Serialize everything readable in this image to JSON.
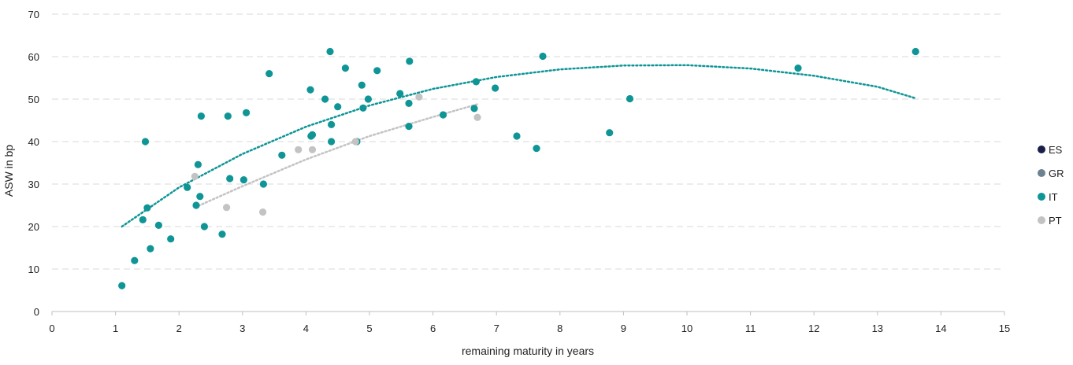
{
  "chart_data": {
    "type": "scatter",
    "title": "",
    "xlabel": "remaining maturity in years",
    "ylabel": "ASW in bp",
    "xlim": [
      0,
      15
    ],
    "ylim": [
      0,
      70
    ],
    "x_ticks": [
      0,
      1,
      2,
      3,
      4,
      5,
      6,
      7,
      8,
      9,
      10,
      11,
      12,
      13,
      14,
      15
    ],
    "y_ticks": [
      0,
      10,
      20,
      30,
      40,
      50,
      60,
      70
    ],
    "grid": "horizontal dashed",
    "legend_position": "right",
    "series": [
      {
        "name": "ES",
        "color": "#1a1f4a",
        "points": []
      },
      {
        "name": "GR",
        "color": "#6c8290",
        "points": []
      },
      {
        "name": "IT",
        "color": "#0f9596",
        "points": [
          [
            1.1,
            6.1
          ],
          [
            1.3,
            12
          ],
          [
            1.43,
            21.6
          ],
          [
            1.47,
            40
          ],
          [
            1.5,
            24.4
          ],
          [
            1.55,
            14.8
          ],
          [
            1.68,
            20.3
          ],
          [
            1.87,
            17.1
          ],
          [
            2.13,
            29.2
          ],
          [
            2.27,
            25
          ],
          [
            2.3,
            34.6
          ],
          [
            2.33,
            27.1
          ],
          [
            2.35,
            46
          ],
          [
            2.4,
            20
          ],
          [
            2.68,
            18.2
          ],
          [
            2.77,
            46
          ],
          [
            2.8,
            31.3
          ],
          [
            3.02,
            31
          ],
          [
            3.06,
            46.8
          ],
          [
            3.33,
            30
          ],
          [
            3.42,
            56
          ],
          [
            3.62,
            36.8
          ],
          [
            4.07,
            52.2
          ],
          [
            4.08,
            41.3
          ],
          [
            4.1,
            41.6
          ],
          [
            4.3,
            50
          ],
          [
            4.38,
            61.2
          ],
          [
            4.4,
            40
          ],
          [
            4.4,
            44
          ],
          [
            4.5,
            48.2
          ],
          [
            4.62,
            57.3
          ],
          [
            4.8,
            40
          ],
          [
            4.88,
            53.3
          ],
          [
            4.9,
            47.9
          ],
          [
            4.98,
            50
          ],
          [
            5.12,
            56.7
          ],
          [
            5.48,
            51.3
          ],
          [
            5.62,
            43.6
          ],
          [
            5.62,
            49
          ],
          [
            5.63,
            58.9
          ],
          [
            6.16,
            46.3
          ],
          [
            6.65,
            47.8
          ],
          [
            6.68,
            54.1
          ],
          [
            6.98,
            52.6
          ],
          [
            7.32,
            41.3
          ],
          [
            7.63,
            38.4
          ],
          [
            7.73,
            60.1
          ],
          [
            8.78,
            42.1
          ],
          [
            9.1,
            50.1
          ],
          [
            11.75,
            57.3
          ],
          [
            13.6,
            61.2
          ]
        ],
        "trendline": [
          [
            1.1,
            20
          ],
          [
            2,
            29.2
          ],
          [
            3,
            37.1
          ],
          [
            4,
            43.5
          ],
          [
            5,
            48.5
          ],
          [
            6,
            52.4
          ],
          [
            7,
            55.2
          ],
          [
            8,
            57
          ],
          [
            9,
            57.9
          ],
          [
            10,
            58
          ],
          [
            11,
            57.2
          ],
          [
            12,
            55.5
          ],
          [
            13,
            52.9
          ],
          [
            13.6,
            50.2
          ]
        ]
      },
      {
        "name": "PT",
        "color": "#c3c3c3",
        "points": [
          [
            2.25,
            31.8
          ],
          [
            2.75,
            24.5
          ],
          [
            3.32,
            23.4
          ],
          [
            3.88,
            38.1
          ],
          [
            4.1,
            38.1
          ],
          [
            4.78,
            40
          ],
          [
            5.78,
            50.5
          ],
          [
            6.7,
            45.7
          ]
        ],
        "trendline": [
          [
            2.25,
            24.5
          ],
          [
            3,
            29.5
          ],
          [
            4,
            35.8
          ],
          [
            5,
            41.3
          ],
          [
            6,
            45.8
          ],
          [
            6.7,
            48.8
          ]
        ]
      }
    ]
  }
}
